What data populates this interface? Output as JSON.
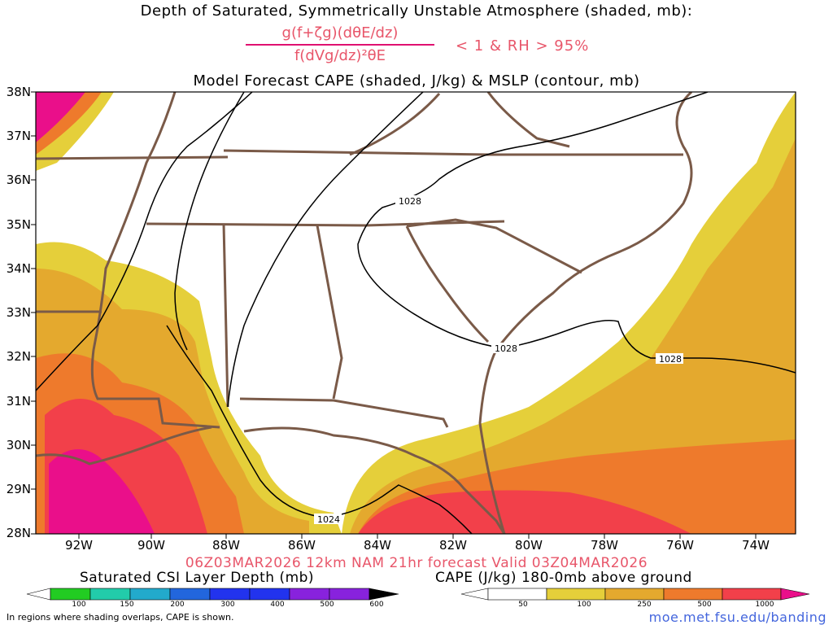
{
  "title": {
    "line1": "Depth of Saturated, Symmetrically Unstable Atmosphere (shaded, mb):",
    "numerator": "g(f+ζg)(dθE/dz)",
    "denominator": "f(dVg/dz)²θE",
    "condition": "< 1 & RH > 95%",
    "line3": "Model Forecast CAPE (shaded, J/kg) & MSLP (contour, mb)"
  },
  "map": {
    "lat_labels": [
      "38N",
      "37N",
      "36N",
      "35N",
      "34N",
      "33N",
      "32N",
      "31N",
      "30N",
      "29N",
      "28N"
    ],
    "lon_labels": [
      "92W",
      "90W",
      "88W",
      "86W",
      "84W",
      "82W",
      "80W",
      "78W",
      "76W",
      "74W"
    ],
    "isobar_labels": [
      "1028",
      "1028",
      "1028",
      "1024"
    ],
    "colors": {
      "border": "#7a5a48",
      "isobar": "#000000",
      "cape_50": "#e5cf3a",
      "cape_100": "#e4a92e",
      "cape_250": "#ee7a2c",
      "cape_500": "#f2404a",
      "cape_1000": "#ea0f8a"
    }
  },
  "forecast_line": "06Z03MAR2026 12km NAM 21hr forecast Valid 03Z04MAR2026",
  "legend_csi": {
    "title": "Saturated CSI Layer Depth (mb)",
    "labels": [
      "100",
      "150",
      "200",
      "300",
      "400",
      "500",
      "600"
    ],
    "colors": [
      "#ffffff",
      "#22cc22",
      "#22ccaa",
      "#22aacc",
      "#2266dd",
      "#2233ee",
      "#8822dd",
      "#000000"
    ]
  },
  "legend_cape": {
    "title": "CAPE (J/kg) 180-0mb above ground",
    "labels": [
      "50",
      "100",
      "250",
      "500",
      "1000"
    ],
    "colors": [
      "#ffffff",
      "#e5cf3a",
      "#e4a92e",
      "#ee7a2c",
      "#f2404a",
      "#ea0f8a"
    ]
  },
  "footer": {
    "note": "In regions where shading overlaps, CAPE is shown.",
    "site": "moe.met.fsu.edu/banding"
  }
}
